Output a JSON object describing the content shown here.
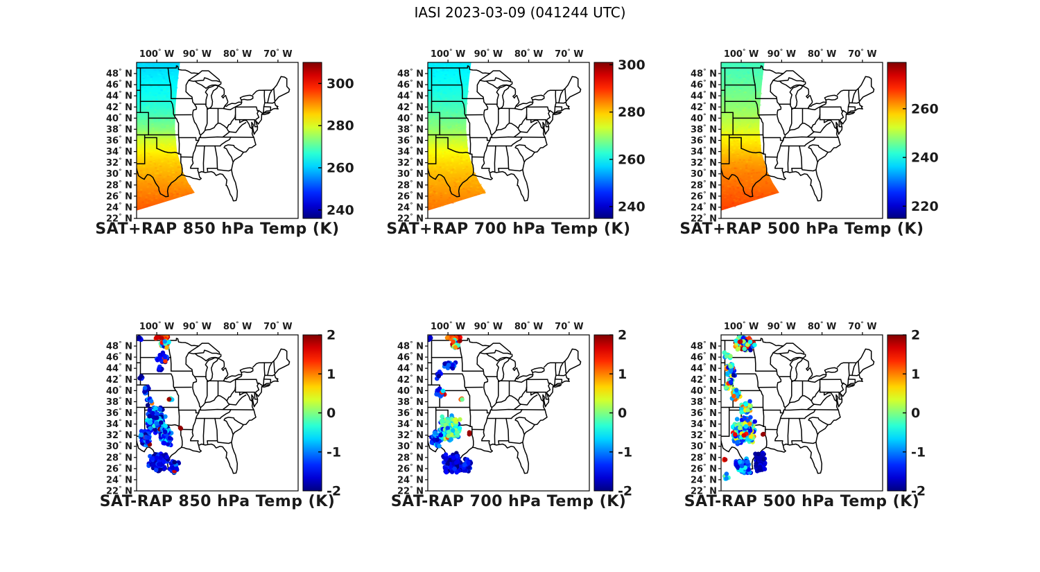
{
  "chart_data": {
    "type": "map",
    "title": "IASI 2023-03-09 (041244 UTC)",
    "projection": {
      "lon_min": -105,
      "lon_max": -65,
      "lat_min": 22,
      "lat_max": 50
    },
    "axes": {
      "lon_ticks": [
        100,
        90,
        80,
        70
      ],
      "lon_suffix": "W",
      "lat_ticks": [
        48,
        46,
        44,
        42,
        40,
        38,
        36,
        34,
        32,
        30,
        28,
        26,
        24,
        22
      ],
      "lat_suffix": "N"
    },
    "swath_outline": [
      [
        -105,
        50
      ],
      [
        -94.25,
        50
      ],
      [
        -94.9,
        46
      ],
      [
        -95.35,
        42
      ],
      [
        -95.5,
        38
      ],
      [
        -95.0,
        34
      ],
      [
        -93.6,
        30.5
      ],
      [
        -92.2,
        28.4
      ],
      [
        -90.6,
        26.6
      ],
      [
        -105,
        23.4
      ]
    ],
    "panels": [
      {
        "id": "sat-plus-rap-850",
        "title": "SAT+RAP 850 hPa Temp (K)",
        "kind": "swath",
        "pressure_hpa": 850,
        "seed": 7,
        "colorbar": {
          "min": 236,
          "max": 310,
          "ticks": [
            240,
            260,
            280,
            300
          ],
          "unit": "K"
        },
        "profile": [
          [
            50,
            261
          ],
          [
            48,
            262
          ],
          [
            46,
            263.5
          ],
          [
            44,
            265
          ],
          [
            42,
            267
          ],
          [
            40,
            270
          ],
          [
            38,
            273.5
          ],
          [
            36,
            279
          ],
          [
            34,
            283
          ],
          [
            32,
            286
          ],
          [
            30,
            288
          ],
          [
            28,
            290
          ],
          [
            26,
            292
          ],
          [
            24,
            294
          ],
          [
            22,
            295
          ]
        ]
      },
      {
        "id": "sat-plus-rap-700",
        "title": "SAT+RAP 700 hPa Temp (K)",
        "kind": "swath",
        "pressure_hpa": 700,
        "seed": 8,
        "colorbar": {
          "min": 235,
          "max": 301,
          "ticks": [
            240,
            260,
            280,
            300
          ],
          "unit": "K"
        },
        "profile": [
          [
            50,
            258.5
          ],
          [
            48,
            259.5
          ],
          [
            46,
            260.5
          ],
          [
            44,
            262
          ],
          [
            42,
            264
          ],
          [
            40,
            266.5
          ],
          [
            38,
            269
          ],
          [
            36,
            272.5
          ],
          [
            34,
            276
          ],
          [
            32,
            278.5
          ],
          [
            30,
            280.5
          ],
          [
            28,
            282
          ],
          [
            26,
            283.5
          ],
          [
            24,
            285
          ],
          [
            22,
            286
          ]
        ]
      },
      {
        "id": "sat-plus-rap-500",
        "title": "SAT+RAP 500 hPa Temp (K)",
        "kind": "swath",
        "pressure_hpa": 500,
        "seed": 9,
        "colorbar": {
          "min": 215,
          "max": 279,
          "ticks": [
            220,
            240,
            260
          ],
          "unit": "K"
        },
        "profile": [
          [
            50,
            243
          ],
          [
            48,
            244
          ],
          [
            46,
            245
          ],
          [
            44,
            246.5
          ],
          [
            42,
            248
          ],
          [
            40,
            250
          ],
          [
            38,
            252.5
          ],
          [
            36,
            256
          ],
          [
            34,
            258.5
          ],
          [
            32,
            261
          ],
          [
            30,
            263
          ],
          [
            28,
            264
          ],
          [
            26,
            265.5
          ],
          [
            24,
            266.5
          ],
          [
            22,
            267
          ]
        ]
      },
      {
        "id": "sat-minus-rap-850",
        "title": "SAT-RAP 850 hPa Temp (K)",
        "kind": "scatter",
        "pressure_hpa": 850,
        "seed": 21,
        "colorbar": {
          "min": -2,
          "max": 2,
          "ticks": [
            2,
            1,
            0,
            -1,
            -2
          ],
          "unit": "K"
        },
        "clusters": [
          {
            "lon": -98.6,
            "lat": 49.6,
            "rx": 1.9,
            "ry": 0.5,
            "n": 42,
            "vmin": 1.0,
            "vmax": 2.0
          },
          {
            "lon": -98.0,
            "lat": 48.4,
            "rx": 1.3,
            "ry": 0.9,
            "n": 40,
            "vmin": -2.0,
            "vmax": 1.6,
            "hot": 0.22
          },
          {
            "lon": -104.3,
            "lat": 49.4,
            "rx": 0.6,
            "ry": 0.5,
            "n": 7,
            "vmin": -2.0,
            "vmax": -1.2
          },
          {
            "lon": -98.6,
            "lat": 45.9,
            "rx": 1.6,
            "ry": 1.1,
            "n": 26,
            "vmin": -2.0,
            "vmax": -1.0,
            "hot": 0.08
          },
          {
            "lon": -99.3,
            "lat": 44.0,
            "rx": 1.0,
            "ry": 0.5,
            "n": 9,
            "vmin": -2.0,
            "vmax": -1.2
          },
          {
            "lon": -103.9,
            "lat": 42.3,
            "rx": 0.4,
            "ry": 0.5,
            "n": 4,
            "vmin": -2.0,
            "vmax": -1.3
          },
          {
            "lon": -102.7,
            "lat": 39.9,
            "rx": 0.8,
            "ry": 0.8,
            "n": 8,
            "vmin": -2.0,
            "vmax": -0.8,
            "hot": 0.12
          },
          {
            "lon": -101.9,
            "lat": 38.3,
            "rx": 0.9,
            "ry": 0.7,
            "n": 10,
            "vmin": -1.8,
            "vmax": -0.5,
            "hot": 0.2
          },
          {
            "lon": -96.6,
            "lat": 38.4,
            "rx": 0.5,
            "ry": 0.4,
            "n": 5,
            "vmin": -2.0,
            "vmax": 1.2,
            "hot": 0.3
          },
          {
            "lon": -100.2,
            "lat": 34.8,
            "rx": 2.6,
            "ry": 2.6,
            "n": 170,
            "vmin": -2.0,
            "vmax": -0.3,
            "hot": 0.05
          },
          {
            "lon": -102.9,
            "lat": 31.6,
            "rx": 1.6,
            "ry": 1.6,
            "n": 60,
            "vmin": -2.0,
            "vmax": -0.8,
            "hot": 0.03
          },
          {
            "lon": -97.7,
            "lat": 31.9,
            "rx": 1.6,
            "ry": 1.9,
            "n": 80,
            "vmin": -2.0,
            "vmax": -0.6,
            "hot": 0.04
          },
          {
            "lon": -93.9,
            "lat": 33.1,
            "rx": 0.3,
            "ry": 0.3,
            "n": 2,
            "vmin": 1.9,
            "vmax": 2.0
          },
          {
            "lon": -99.7,
            "lat": 27.2,
            "rx": 2.6,
            "ry": 1.7,
            "n": 110,
            "vmin": -2.0,
            "vmax": -1.2
          },
          {
            "lon": -95.6,
            "lat": 26.3,
            "rx": 1.3,
            "ry": 1.2,
            "n": 40,
            "vmin": -2.0,
            "vmax": -1.0,
            "hot": 0.06
          }
        ]
      },
      {
        "id": "sat-minus-rap-700",
        "title": "SAT-RAP 700 hPa Temp (K)",
        "kind": "scatter",
        "pressure_hpa": 700,
        "seed": 22,
        "clusters": [
          {
            "lon": -98.5,
            "lat": 49.6,
            "rx": 1.8,
            "ry": 0.5,
            "n": 40,
            "vmin": 0.9,
            "vmax": 2.0
          },
          {
            "lon": -98.1,
            "lat": 48.3,
            "rx": 1.2,
            "ry": 0.9,
            "n": 36,
            "vmin": -2.0,
            "vmax": 1.4,
            "hot": 0.2
          },
          {
            "lon": -104.4,
            "lat": 49.3,
            "rx": 0.5,
            "ry": 0.5,
            "n": 6,
            "vmin": -2.0,
            "vmax": -1.2
          },
          {
            "lon": -99.6,
            "lat": 44.6,
            "rx": 1.7,
            "ry": 0.9,
            "n": 22,
            "vmin": -2.0,
            "vmax": -1.0
          },
          {
            "lon": -102.3,
            "lat": 42.7,
            "rx": 0.7,
            "ry": 0.8,
            "n": 8,
            "vmin": -2.0,
            "vmax": -1.2
          },
          {
            "lon": -101.8,
            "lat": 39.6,
            "rx": 1.1,
            "ry": 1.0,
            "n": 18,
            "vmin": -2.0,
            "vmax": -0.4,
            "hot": 0.15
          },
          {
            "lon": -96.6,
            "lat": 38.5,
            "rx": 0.5,
            "ry": 0.4,
            "n": 4,
            "vmin": -2.0,
            "vmax": 1.5,
            "hot": 0.4
          },
          {
            "lon": -99.6,
            "lat": 33.2,
            "rx": 2.8,
            "ry": 2.4,
            "n": 200,
            "vmin": -1.6,
            "vmax": 0.4,
            "hot": 0.04
          },
          {
            "lon": -102.8,
            "lat": 31.4,
            "rx": 1.5,
            "ry": 1.5,
            "n": 50,
            "vmin": -1.8,
            "vmax": -0.5
          },
          {
            "lon": -94.9,
            "lat": 32.3,
            "rx": 0.3,
            "ry": 0.3,
            "n": 2,
            "vmin": 1.7,
            "vmax": 2.0
          },
          {
            "lon": -98.9,
            "lat": 27.0,
            "rx": 2.6,
            "ry": 1.8,
            "n": 120,
            "vmin": -2.0,
            "vmax": -1.3
          },
          {
            "lon": -95.3,
            "lat": 26.6,
            "rx": 1.2,
            "ry": 1.2,
            "n": 40,
            "vmin": -2.0,
            "vmax": -1.2
          }
        ],
        "colorbar": {
          "min": -2,
          "max": 2,
          "ticks": [
            2,
            1,
            0,
            -1,
            -2
          ],
          "unit": "K"
        }
      },
      {
        "id": "sat-minus-rap-500",
        "title": "SAT-RAP 500 hPa Temp (K)",
        "kind": "scatter",
        "pressure_hpa": 500,
        "seed": 23,
        "clusters": [
          {
            "lon": -99.2,
            "lat": 48.5,
            "rx": 2.6,
            "ry": 1.4,
            "n": 130,
            "vmin": -2.0,
            "vmax": 2.0
          },
          {
            "lon": -103.5,
            "lat": 46.5,
            "rx": 1.0,
            "ry": 0.8,
            "n": 10,
            "vmin": -1.0,
            "vmax": 1.0
          },
          {
            "lon": -102.5,
            "lat": 43.8,
            "rx": 1.4,
            "ry": 1.3,
            "n": 45,
            "vmin": -2.0,
            "vmax": 1.2
          },
          {
            "lon": -103.0,
            "lat": 41.0,
            "rx": 1.0,
            "ry": 1.2,
            "n": 30,
            "vmin": -2.0,
            "vmax": 1.5
          },
          {
            "lon": -101.3,
            "lat": 39.3,
            "rx": 1.4,
            "ry": 1.2,
            "n": 45,
            "vmin": -1.5,
            "vmax": 1.5
          },
          {
            "lon": -99.0,
            "lat": 37.0,
            "rx": 1.6,
            "ry": 1.2,
            "n": 55,
            "vmin": -1.5,
            "vmax": 1.2
          },
          {
            "lon": -99.3,
            "lat": 32.8,
            "rx": 3.0,
            "ry": 2.6,
            "n": 260,
            "vmin": -1.6,
            "vmax": 0.6,
            "hot": 0.05
          },
          {
            "lon": -94.6,
            "lat": 32.3,
            "rx": 0.3,
            "ry": 0.3,
            "n": 2,
            "vmin": 1.9,
            "vmax": 2.0
          },
          {
            "lon": -104.0,
            "lat": 27.7,
            "rx": 0.4,
            "ry": 0.4,
            "n": 3,
            "vmin": 1.3,
            "vmax": 1.8
          },
          {
            "lon": -95.3,
            "lat": 27.2,
            "rx": 1.4,
            "ry": 1.9,
            "n": 110,
            "vmin": -2.0,
            "vmax": -1.5
          },
          {
            "lon": -99.5,
            "lat": 26.5,
            "rx": 2.0,
            "ry": 1.4,
            "n": 70,
            "vmin": -1.8,
            "vmax": -0.4
          },
          {
            "lon": -103.6,
            "lat": 24.6,
            "rx": 0.8,
            "ry": 0.6,
            "n": 6,
            "vmin": -1.2,
            "vmax": 0.2
          }
        ],
        "colorbar": {
          "min": -2,
          "max": 2,
          "ticks": [
            2,
            1,
            0,
            -1,
            -2
          ],
          "unit": "K"
        }
      }
    ]
  }
}
